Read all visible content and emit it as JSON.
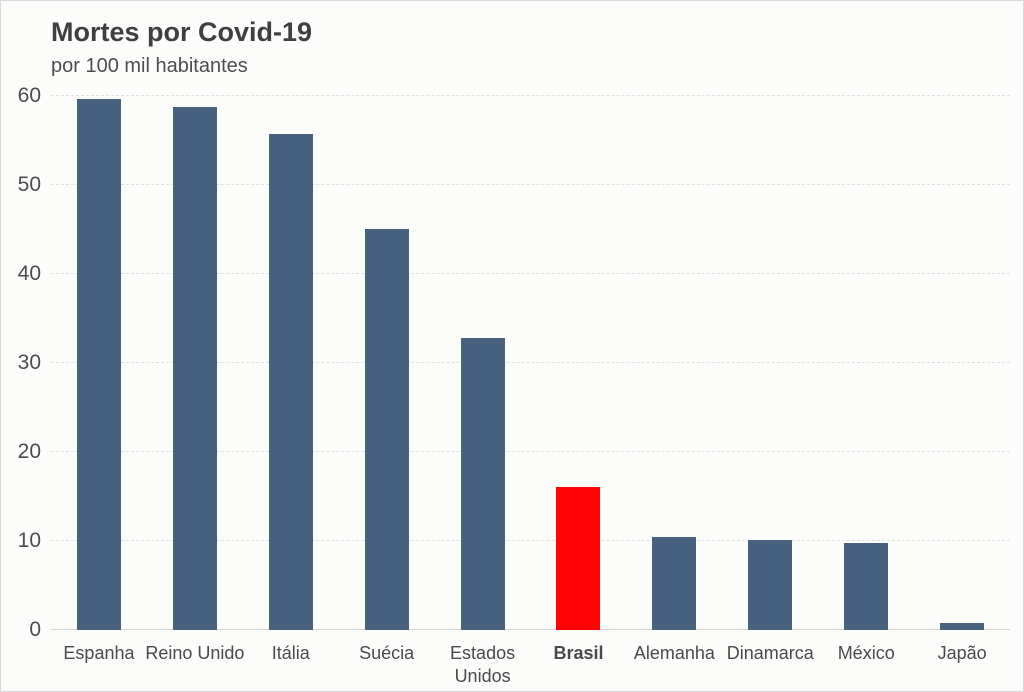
{
  "page": {
    "background_color": "#fcfdfa",
    "border_color": "#d9d9d9"
  },
  "chart_data": {
    "type": "bar",
    "title": "Mortes por Covid-19",
    "subtitle": "por 100 mil habitantes",
    "categories": [
      "Espanha",
      "Reino Unido",
      "Itália",
      "Suécia",
      "Estados Unidos",
      "Brasil",
      "Alemanha",
      "Dinamarca",
      "México",
      "Japão"
    ],
    "values": [
      59.7,
      58.8,
      55.7,
      45.1,
      32.8,
      16.1,
      10.4,
      10.1,
      9.8,
      0.8
    ],
    "highlight_index": 5,
    "highlight_category": "Brasil",
    "bar_color": "#46627e",
    "highlight_color": "#fe0404",
    "xlabel": "",
    "ylabel": "",
    "ylim": [
      0,
      60
    ],
    "yticks": [
      0,
      10,
      20,
      30,
      40,
      50,
      60
    ],
    "grid": true,
    "gridline_color": "#e0e0df",
    "axis_text_color": "#4d4d4d",
    "legend": "none"
  }
}
